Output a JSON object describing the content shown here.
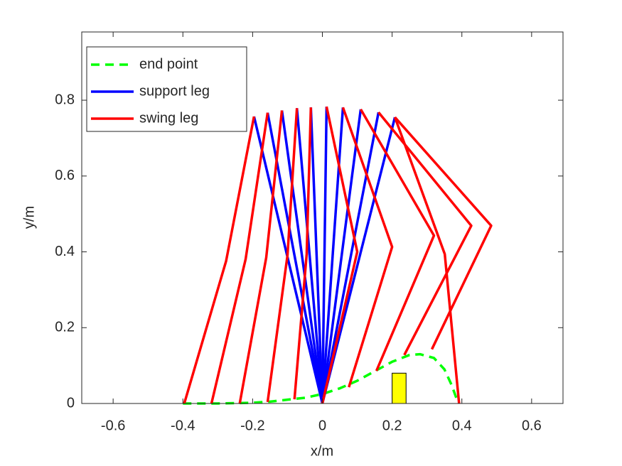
{
  "chart_data": {
    "type": "line",
    "xlabel": "x/m",
    "ylabel": "y/m",
    "xlim": [
      -0.69,
      0.69
    ],
    "ylim": [
      0,
      0.98
    ],
    "xticks": [
      -0.6,
      -0.4,
      -0.2,
      0,
      0.2,
      0.4,
      0.6
    ],
    "yticks": [
      0,
      0.2,
      0.4,
      0.6,
      0.8
    ],
    "legend": "upper left",
    "series": [
      {
        "name": "end point",
        "color": "#00ff00",
        "dashed": true,
        "lines": [
          {
            "x": [
              -0.4,
              -0.3,
              -0.2,
              -0.15,
              -0.1,
              -0.05,
              0,
              0.05,
              0.1,
              0.15,
              0.2,
              0.25,
              0.28,
              0.32,
              0.35,
              0.37,
              0.39
            ],
            "y": [
              0,
              0,
              0.002,
              0.005,
              0.01,
              0.015,
              0.025,
              0.04,
              0.06,
              0.085,
              0.11,
              0.128,
              0.13,
              0.12,
              0.09,
              0.05,
              0
            ]
          }
        ]
      },
      {
        "name": "support leg",
        "color": "#0000ff",
        "dashed": false,
        "lines": [
          {
            "x": [
              -0.196,
              0
            ],
            "y": [
              0.757,
              0
            ]
          },
          {
            "x": [
              -0.157,
              0
            ],
            "y": [
              0.767,
              0
            ]
          },
          {
            "x": [
              -0.116,
              0
            ],
            "y": [
              0.773,
              0
            ]
          },
          {
            "x": [
              -0.073,
              0
            ],
            "y": [
              0.779,
              0
            ]
          },
          {
            "x": [
              -0.033,
              0
            ],
            "y": [
              0.781,
              0
            ]
          },
          {
            "x": [
              0.012,
              0
            ],
            "y": [
              0.783,
              0
            ]
          },
          {
            "x": [
              0.059,
              0
            ],
            "y": [
              0.781,
              0
            ]
          },
          {
            "x": [
              0.11,
              0
            ],
            "y": [
              0.776,
              0
            ]
          },
          {
            "x": [
              0.161,
              0
            ],
            "y": [
              0.768,
              0
            ]
          },
          {
            "x": [
              0.208,
              0
            ],
            "y": [
              0.755,
              0
            ]
          }
        ]
      },
      {
        "name": "swing leg",
        "color": "#ff0000",
        "dashed": false,
        "lines": [
          {
            "x": [
              -0.196,
              -0.276,
              -0.396
            ],
            "y": [
              0.757,
              0.376,
              0
            ]
          },
          {
            "x": [
              -0.157,
              -0.22,
              -0.318
            ],
            "y": [
              0.767,
              0.381,
              0
            ]
          },
          {
            "x": [
              -0.116,
              -0.161,
              -0.237
            ],
            "y": [
              0.773,
              0.385,
              0
            ]
          },
          {
            "x": [
              -0.073,
              -0.1,
              -0.157
            ],
            "y": [
              0.779,
              0.391,
              0.004
            ]
          },
          {
            "x": [
              -0.033,
              -0.045,
              -0.08
            ],
            "y": [
              0.781,
              0.394,
              0.011
            ]
          },
          {
            "x": [
              0.012,
              0.1,
              0
            ],
            "y": [
              0.783,
              0.4,
              0
            ]
          },
          {
            "x": [
              0.059,
              0.2,
              0.076
            ],
            "y": [
              0.781,
              0.413,
              0.043
            ]
          },
          {
            "x": [
              0.11,
              0.32,
              0.155
            ],
            "y": [
              0.776,
              0.443,
              0.086
            ]
          },
          {
            "x": [
              0.161,
              0.427,
              0.235
            ],
            "y": [
              0.768,
              0.469,
              0.128
            ]
          },
          {
            "x": [
              0.208,
              0.484,
              0.314
            ],
            "y": [
              0.755,
              0.469,
              0.143
            ]
          },
          {
            "x": [
              0.208,
              0.351,
              0.392
            ],
            "y": [
              0.755,
              0.394,
              0
            ]
          }
        ]
      }
    ],
    "rects": [
      {
        "x": [
          0.2,
          0.24
        ],
        "y": [
          0,
          0.08
        ],
        "color": "#ffff00"
      }
    ]
  }
}
